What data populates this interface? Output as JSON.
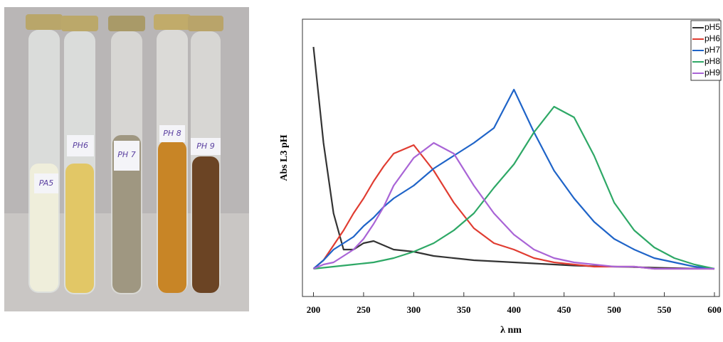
{
  "photo": {
    "tube_labels": [
      "PA5",
      "PH6",
      "PH 7",
      "PH 8",
      "PH 9"
    ]
  },
  "chart_data": {
    "type": "line",
    "x_label": "λ nm",
    "y_label": "Abs L3 pH",
    "x": [
      200,
      210,
      220,
      230,
      240,
      250,
      260,
      270,
      280,
      300,
      320,
      340,
      360,
      380,
      400,
      420,
      440,
      460,
      480,
      500,
      520,
      540,
      560,
      580,
      600
    ],
    "series": [
      {
        "name": "pH5",
        "color": "#333333",
        "values": [
          1.04,
          0.59,
          0.26,
          0.09,
          0.09,
          0.12,
          0.13,
          0.11,
          0.09,
          0.08,
          0.06,
          0.05,
          0.04,
          0.035,
          0.03,
          0.025,
          0.02,
          0.015,
          0.012,
          0.01,
          0.008,
          0.005,
          0.003,
          0.001,
          0
        ]
      },
      {
        "name": "pH6",
        "color": "#e03c31",
        "values": [
          0,
          0.04,
          0.11,
          0.18,
          0.26,
          0.33,
          0.41,
          0.48,
          0.54,
          0.58,
          0.46,
          0.31,
          0.19,
          0.12,
          0.09,
          0.05,
          0.03,
          0.02,
          0.01,
          0.01,
          0.01,
          0,
          0,
          0,
          0
        ]
      },
      {
        "name": "pH7",
        "color": "#1f64c8",
        "values": [
          0,
          0.04,
          0.09,
          0.12,
          0.15,
          0.2,
          0.24,
          0.29,
          0.33,
          0.39,
          0.47,
          0.53,
          0.59,
          0.66,
          0.84,
          0.64,
          0.46,
          0.33,
          0.22,
          0.14,
          0.09,
          0.05,
          0.03,
          0.01,
          0
        ]
      },
      {
        "name": "pH8",
        "color": "#2ea866",
        "values": [
          0,
          0.005,
          0.01,
          0.015,
          0.02,
          0.025,
          0.03,
          0.04,
          0.05,
          0.08,
          0.12,
          0.18,
          0.26,
          0.38,
          0.49,
          0.64,
          0.76,
          0.71,
          0.53,
          0.31,
          0.18,
          0.1,
          0.05,
          0.02,
          0
        ]
      },
      {
        "name": "pH9",
        "color": "#a964d6",
        "values": [
          0,
          0.02,
          0.03,
          0.06,
          0.09,
          0.14,
          0.21,
          0.29,
          0.39,
          0.52,
          0.59,
          0.54,
          0.39,
          0.26,
          0.16,
          0.09,
          0.05,
          0.03,
          0.02,
          0.01,
          0.01,
          0,
          0,
          0,
          0
        ]
      }
    ],
    "xlim": [
      189,
      605
    ],
    "xticks": [
      200,
      250,
      300,
      350,
      400,
      450,
      500,
      550,
      600
    ],
    "ylim": [
      -0.13,
      1.17
    ],
    "legend": "upper right"
  }
}
